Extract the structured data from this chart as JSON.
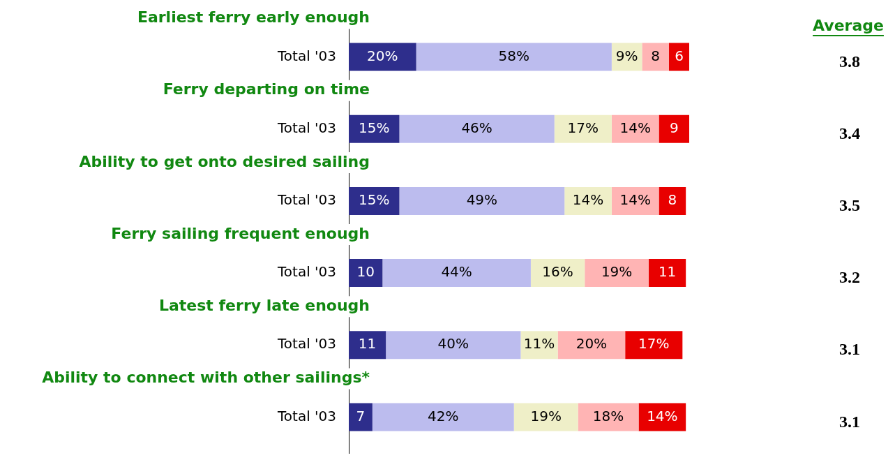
{
  "chart_data": {
    "type": "bar",
    "orientation": "horizontal",
    "stacked": true,
    "tick_labels": "y",
    "categories": [
      "Total '03",
      "Total '03",
      "Total '03",
      "Total '03",
      "Total '03",
      "Total '03"
    ],
    "series": [
      {
        "color": "#2e2e8c",
        "values": [
          20,
          15,
          15,
          10,
          11,
          7
        ],
        "value_labels": [
          "20%",
          "15%",
          "15%",
          "10",
          "11",
          "7"
        ]
      },
      {
        "color": "#bcbcee",
        "values": [
          58,
          46,
          49,
          44,
          40,
          42
        ],
        "value_labels": [
          "58%",
          "46%",
          "49%",
          "44%",
          "40%",
          "42%"
        ]
      },
      {
        "color": "#efefc8",
        "values": [
          9,
          17,
          14,
          16,
          11,
          19
        ],
        "value_labels": [
          "9%",
          "17%",
          "14%",
          "16%",
          "11%",
          "19%"
        ]
      },
      {
        "color": "#ffb4b4",
        "values": [
          8,
          14,
          14,
          19,
          20,
          18
        ],
        "value_labels": [
          "8",
          "14%",
          "14%",
          "19%",
          "20%",
          "18%"
        ]
      },
      {
        "color": "#e80000",
        "values": [
          6,
          9,
          8,
          11,
          17,
          14
        ],
        "value_labels": [
          "6",
          "9",
          "8",
          "11",
          "17%",
          "14%"
        ]
      }
    ],
    "annotations": [
      "Earliest ferry early enough",
      "Ferry departing on time",
      "Ability to get onto desired sailing",
      "Ferry sailing frequent enough",
      "Latest ferry late enough",
      "Ability to connect with other sailings*",
      "Average",
      "3.8",
      "3.4",
      "3.5",
      "3.2",
      "3.1",
      "3.1"
    ]
  }
}
